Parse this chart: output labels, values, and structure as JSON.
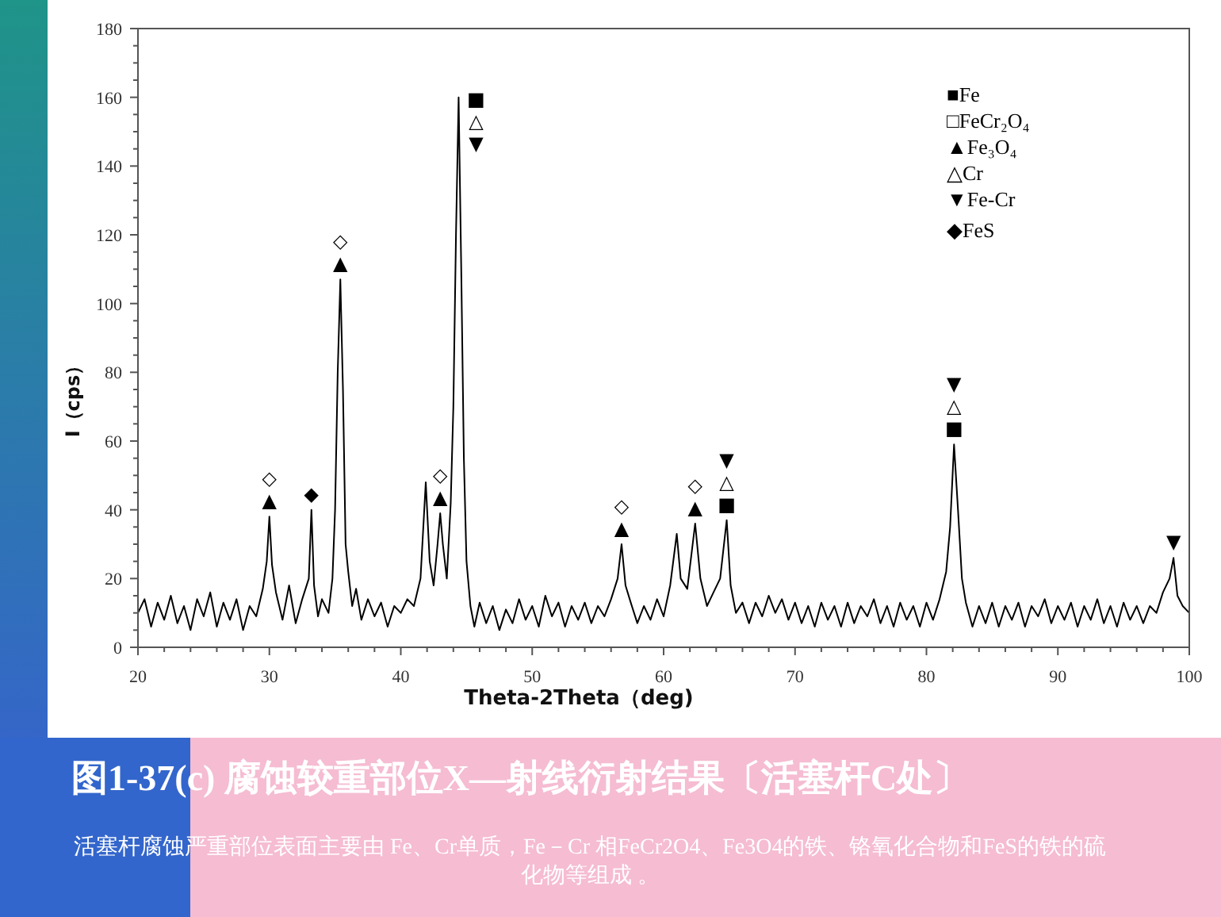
{
  "chart_data": {
    "type": "line",
    "title": "图1-37(c) 腐蚀较重部位X—射线衍射结果〔活塞杆C处〕",
    "subtitle": "活塞杆腐蚀严重部位表面主要由 Fe、Cr单质，Fe－Cr 相FeCr2O4、Fe3O4的铁、铬氧化合物和FeS的铁的硫化物等组成 。",
    "xlabel": "Theta-2Theta（deg)",
    "ylabel": "I（cps）",
    "xlim": [
      20,
      100
    ],
    "ylim": [
      0,
      180
    ],
    "xticks": [
      20,
      {
        "value": 22,
        "label": null
      },
      {
        "value": 24,
        "label": null
      },
      {
        "value": 26,
        "label": null
      },
      {
        "value": 28,
        "label": null
      },
      30,
      {
        "value": 32,
        "label": null
      },
      {
        "value": 34,
        "label": null
      },
      {
        "value": 36,
        "label": null
      },
      {
        "value": 38,
        "label": null
      },
      40,
      {
        "value": 42,
        "label": null
      },
      {
        "value": 44,
        "label": null
      },
      {
        "value": 46,
        "label": null
      },
      {
        "value": 48,
        "label": null
      },
      50,
      {
        "value": 52,
        "label": null
      },
      {
        "value": 54,
        "label": null
      },
      {
        "value": 56,
        "label": null
      },
      {
        "value": 58,
        "label": null
      },
      60,
      {
        "value": 62,
        "label": null
      },
      {
        "value": 64,
        "label": null
      },
      {
        "value": 66,
        "label": null
      },
      {
        "value": 68,
        "label": null
      },
      70,
      {
        "value": 72,
        "label": null
      },
      {
        "value": 74,
        "label": null
      },
      {
        "value": 76,
        "label": null
      },
      {
        "value": 78,
        "label": null
      },
      80,
      {
        "value": 82,
        "label": null
      },
      {
        "value": 84,
        "label": null
      },
      {
        "value": 86,
        "label": null
      },
      {
        "value": 88,
        "label": null
      },
      90,
      {
        "value": 92,
        "label": null
      },
      {
        "value": 94,
        "label": null
      },
      {
        "value": 96,
        "label": null
      },
      {
        "value": 98,
        "label": null
      },
      100
    ],
    "yticks": [
      0,
      {
        "value": 5,
        "label": null
      },
      {
        "value": 10,
        "label": null
      },
      {
        "value": 15,
        "label": null
      },
      20,
      {
        "value": 25,
        "label": null
      },
      {
        "value": 30,
        "label": null
      },
      {
        "value": 35,
        "label": null
      },
      40,
      {
        "value": 45,
        "label": null
      },
      {
        "value": 50,
        "label": null
      },
      {
        "value": 55,
        "label": null
      },
      60,
      {
        "value": 65,
        "label": null
      },
      {
        "value": 70,
        "label": null
      },
      {
        "value": 75,
        "label": null
      },
      80,
      {
        "value": 85,
        "label": null
      },
      {
        "value": 90,
        "label": null
      },
      {
        "value": 95,
        "label": null
      },
      100,
      {
        "value": 105,
        "label": null
      },
      {
        "value": 110,
        "label": null
      },
      {
        "value": 115,
        "label": null
      },
      120,
      {
        "value": 125,
        "label": null
      },
      {
        "value": 130,
        "label": null
      },
      {
        "value": 135,
        "label": null
      },
      140,
      {
        "value": 145,
        "label": null
      },
      {
        "value": 150,
        "label": null
      },
      {
        "value": 155,
        "label": null
      },
      160,
      {
        "value": 165,
        "label": null
      },
      {
        "value": 170,
        "label": null
      },
      {
        "value": 175,
        "label": null
      },
      180
    ],
    "series": [
      {
        "color": "#000000",
        "x": [
          20,
          20.5,
          21,
          21.5,
          22,
          22.5,
          23,
          23.5,
          24,
          24.5,
          25,
          25.5,
          26,
          26.5,
          27,
          27.5,
          28,
          28.5,
          29,
          29.5,
          29.8,
          30,
          30.2,
          30.5,
          31,
          31.5,
          32,
          32.5,
          33,
          33.2,
          33.4,
          33.7,
          34,
          34.5,
          34.8,
          35,
          35.2,
          35.4,
          35.6,
          35.8,
          36,
          36.3,
          36.6,
          37,
          37.5,
          38,
          38.5,
          39,
          39.5,
          40,
          40.5,
          41,
          41.5,
          41.9,
          42.2,
          42.5,
          42.8,
          43,
          43.2,
          43.5,
          43.8,
          44,
          44.2,
          44.4,
          44.6,
          44.8,
          45,
          45.3,
          45.6,
          46,
          46.5,
          47,
          47.5,
          48,
          48.5,
          49,
          49.5,
          50,
          50.5,
          51,
          51.5,
          52,
          52.5,
          53,
          53.5,
          54,
          54.5,
          55,
          55.5,
          56,
          56.5,
          56.8,
          57.1,
          57.5,
          58,
          58.5,
          59,
          59.5,
          60,
          60.5,
          61,
          61.3,
          61.8,
          62.4,
          62.8,
          63.3,
          63.8,
          64.3,
          64.8,
          65.1,
          65.5,
          66,
          66.5,
          67,
          67.5,
          68,
          68.5,
          69,
          69.5,
          70,
          70.5,
          71,
          71.5,
          72,
          72.5,
          73,
          73.5,
          74,
          74.5,
          75,
          75.5,
          76,
          76.5,
          77,
          77.5,
          78,
          78.5,
          79,
          79.5,
          80,
          80.5,
          81,
          81.5,
          81.8,
          82.1,
          82.4,
          82.7,
          83,
          83.5,
          84,
          84.5,
          85,
          85.5,
          86,
          86.5,
          87,
          87.5,
          88,
          88.5,
          89,
          89.5,
          90,
          90.5,
          91,
          91.5,
          92,
          92.5,
          93,
          93.5,
          94,
          94.5,
          95,
          95.5,
          96,
          96.5,
          97,
          97.5,
          98,
          98.5,
          98.8,
          99.1,
          99.5,
          100
        ],
        "values": [
          10,
          14,
          6,
          13,
          8,
          15,
          7,
          12,
          5,
          14,
          9,
          16,
          6,
          13,
          8,
          14,
          5,
          12,
          9,
          17,
          25,
          38,
          24,
          16,
          8,
          18,
          7,
          14,
          20,
          40,
          18,
          9,
          14,
          10,
          20,
          40,
          80,
          107,
          75,
          30,
          22,
          12,
          17,
          8,
          14,
          9,
          13,
          6,
          12,
          10,
          14,
          12,
          20,
          48,
          25,
          18,
          30,
          39,
          30,
          20,
          42,
          70,
          120,
          160,
          110,
          55,
          25,
          12,
          6,
          13,
          7,
          12,
          5,
          11,
          7,
          14,
          8,
          12,
          6,
          15,
          9,
          13,
          6,
          12,
          8,
          13,
          7,
          12,
          9,
          14,
          20,
          30,
          18,
          13,
          7,
          12,
          8,
          14,
          9,
          18,
          33,
          20,
          17,
          36,
          20,
          12,
          16,
          20,
          37,
          18,
          10,
          13,
          7,
          13,
          9,
          15,
          10,
          14,
          8,
          13,
          7,
          12,
          6,
          13,
          8,
          12,
          6,
          13,
          7,
          12,
          9,
          14,
          7,
          12,
          6,
          13,
          8,
          12,
          6,
          13,
          8,
          14,
          22,
          35,
          59,
          40,
          20,
          13,
          6,
          12,
          7,
          13,
          6,
          12,
          8,
          13,
          6,
          12,
          9,
          14,
          7,
          12,
          8,
          13,
          6,
          12,
          8,
          14,
          7,
          12,
          6,
          13,
          8,
          12,
          7,
          12,
          10,
          16,
          20,
          26,
          15,
          12,
          10
        ]
      }
    ],
    "annotations": [
      "■Fe",
      "□FeCr₂O₄",
      "▲Fe₃O₄",
      "△Cr",
      "▼Fe-Cr",
      "◆FeS",
      {
        "text": "▲",
        "x": 30,
        "y": 38
      },
      {
        "text": "◇",
        "x": 30,
        "y": 38
      },
      {
        "text": "◆",
        "x": 33.2,
        "y": 40
      },
      {
        "text": "▲",
        "x": 35.4,
        "y": 107
      },
      {
        "text": "◇",
        "x": 35.4,
        "y": 107
      },
      {
        "text": "▲",
        "x": 43,
        "y": 39
      },
      {
        "text": "◇",
        "x": 43,
        "y": 39
      },
      {
        "text": "■",
        "x": 44.4,
        "y": 160
      },
      {
        "text": "△",
        "x": 44.4,
        "y": 160
      },
      {
        "text": "▼",
        "x": 44.4,
        "y": 160
      },
      {
        "text": "▲",
        "x": 56.8,
        "y": 30
      },
      {
        "text": "◇",
        "x": 56.8,
        "y": 30
      },
      {
        "text": "▲",
        "x": 62.4,
        "y": 36
      },
      {
        "text": "◇",
        "x": 62.4,
        "y": 36
      },
      {
        "text": "■",
        "x": 64.8,
        "y": 37
      },
      {
        "text": "△",
        "x": 64.8,
        "y": 37
      },
      {
        "text": "▼",
        "x": 64.8,
        "y": 37
      },
      {
        "text": "■",
        "x": 82.1,
        "y": 59
      },
      {
        "text": "△",
        "x": 82.1,
        "y": 59
      },
      {
        "text": "▼",
        "x": 82.1,
        "y": 59
      },
      {
        "text": "▼",
        "x": 98.8,
        "y": 26
      }
    ]
  }
}
